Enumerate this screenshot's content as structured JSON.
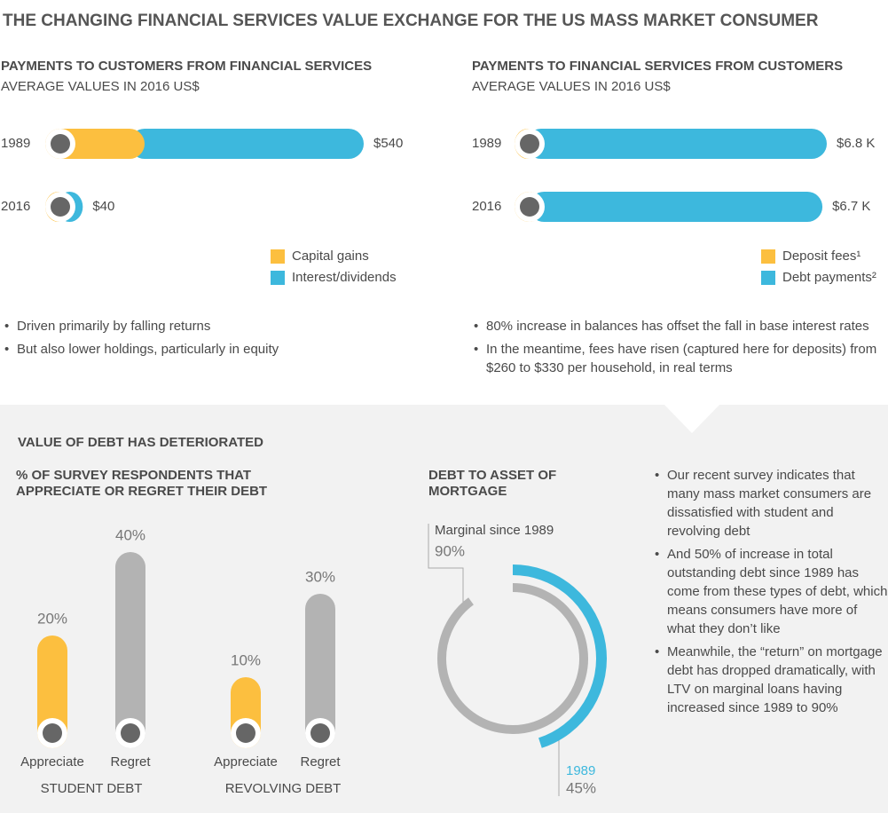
{
  "title": "THE CHANGING FINANCIAL SERVICES VALUE EXCHANGE FOR THE US MASS MARKET CONSUMER",
  "debt_section": {
    "title": "VALUE OF DEBT HAS DETERIORATED",
    "notes": [
      "Our recent survey indicates that many mass market consumers are dissatisfied with student and revolving debt",
      "And 50% of increase in total outstanding debt since 1989 has come from these types of debt, which means consumers have more of what they don’t like",
      "Meanwhile, the “return” on mortgage debt has dropped dramatically, with LTV on marginal loans having increased since 1989 to 90%"
    ]
  },
  "chart_data": [
    {
      "type": "hbar",
      "title": "PAYMENTS TO CUSTOMERS FROM FINANCIAL SERVICES",
      "subtitle": "AVERAGE VALUES IN 2016 US$",
      "categories": [
        "1989",
        "2016"
      ],
      "series": [
        {
          "name": "Capital gains",
          "color": "#fcbf3f",
          "values": [
            150,
            20
          ]
        },
        {
          "name": "Interest/dividends",
          "color": "#3db8dd",
          "values": [
            390,
            20
          ]
        }
      ],
      "total_values": [
        540,
        40
      ],
      "total_labels": [
        "$540",
        "$40"
      ],
      "notes": [
        "Driven primarily by falling returns",
        "But also lower holdings, particularly in equity"
      ]
    },
    {
      "type": "hbar",
      "title": "PAYMENTS TO FINANCIAL SERVICES FROM CUSTOMERS",
      "subtitle": "AVERAGE VALUES IN 2016 US$",
      "categories": [
        "1989",
        "2016"
      ],
      "series": [
        {
          "name": "Deposit fees¹",
          "color": "#fcbf3f",
          "values": [
            260,
            330
          ]
        },
        {
          "name": "Debt payments²",
          "color": "#3db8dd",
          "values": [
            6540,
            6370
          ]
        }
      ],
      "total_values": [
        6800,
        6700
      ],
      "total_labels": [
        "$6.8 K",
        "$6.7 K"
      ],
      "notes": [
        "80% increase in balances has offset the fall in base interest rates",
        "In the meantime, fees have risen (captured here for deposits) from $260 to $330 per household, in real terms"
      ]
    },
    {
      "type": "vbar",
      "title": "% OF SURVEY RESPONDENTS THAT APPRECIATE OR REGRET THEIR DEBT",
      "colors": [
        "#fcbf3f",
        "#b3b3b3"
      ],
      "groups": [
        {
          "name": "STUDENT DEBT",
          "categories": [
            "Appreciate",
            "Regret"
          ],
          "values": [
            20,
            40
          ],
          "value_labels": [
            "20%",
            "40%"
          ]
        },
        {
          "name": "REVOLVING DEBT",
          "categories": [
            "Appreciate",
            "Regret"
          ],
          "values": [
            10,
            30
          ],
          "value_labels": [
            "10%",
            "30%"
          ]
        }
      ]
    },
    {
      "type": "radial",
      "title": "DEBT TO ASSET OF MORTGAGE",
      "series": [
        {
          "name": "Marginal since 1989",
          "color": "#b3b3b3",
          "values": [
            90
          ],
          "value_labels": [
            "90%"
          ]
        },
        {
          "name": "1989",
          "color": "#3db8dd",
          "values": [
            45
          ],
          "value_labels": [
            "45%"
          ]
        }
      ]
    }
  ]
}
